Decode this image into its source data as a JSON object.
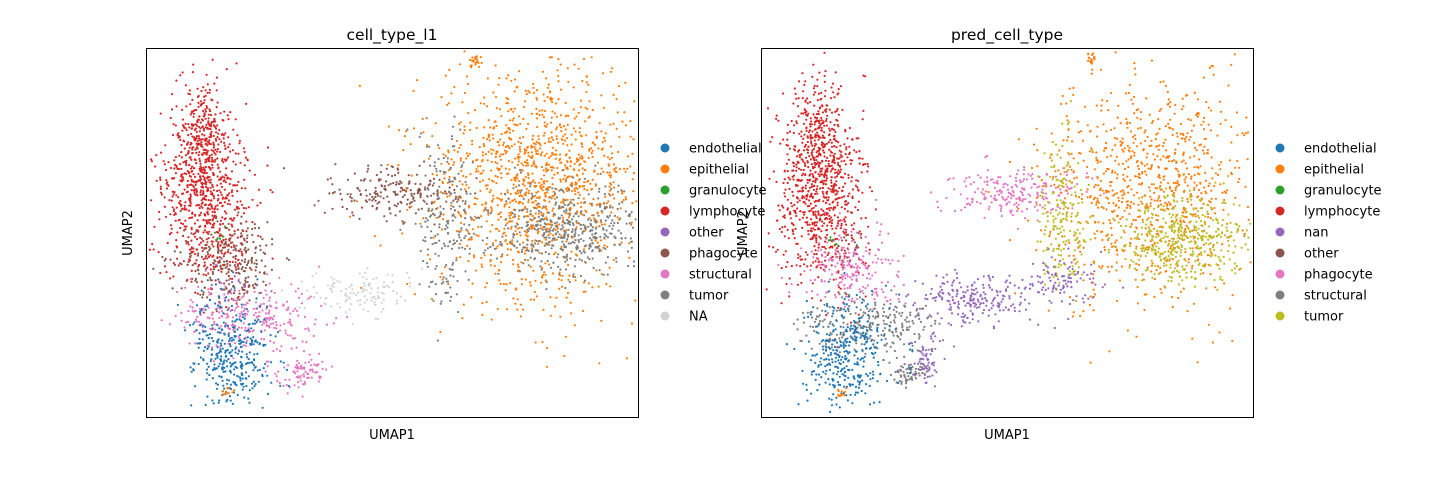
{
  "chart_data": [
    {
      "type": "scatter",
      "title": "cell_type_l1",
      "xlabel": "UMAP1",
      "ylabel": "UMAP2",
      "xticks": [],
      "yticks": [],
      "legend_position": "right",
      "series": [
        {
          "name": "endothelial",
          "color": "#1f77b4"
        },
        {
          "name": "epithelial",
          "color": "#ff7f0e"
        },
        {
          "name": "granulocyte",
          "color": "#2ca02c"
        },
        {
          "name": "lymphocyte",
          "color": "#d62728"
        },
        {
          "name": "other",
          "color": "#9467bd"
        },
        {
          "name": "phagocyte",
          "color": "#8c564b"
        },
        {
          "name": "structural",
          "color": "#e377c2"
        },
        {
          "name": "tumor",
          "color": "#7f7f7f"
        },
        {
          "name": "NA",
          "color": "#d3d3d3"
        }
      ]
    },
    {
      "type": "scatter",
      "title": "pred_cell_type",
      "xlabel": "UMAP1",
      "ylabel": "UMAP2",
      "xticks": [],
      "yticks": [],
      "legend_position": "right",
      "series": [
        {
          "name": "endothelial",
          "color": "#1f77b4"
        },
        {
          "name": "epithelial",
          "color": "#ff7f0e"
        },
        {
          "name": "granulocyte",
          "color": "#2ca02c"
        },
        {
          "name": "lymphocyte",
          "color": "#d62728"
        },
        {
          "name": "nan",
          "color": "#9467bd"
        },
        {
          "name": "other",
          "color": "#8c564b"
        },
        {
          "name": "phagocyte",
          "color": "#e377c2"
        },
        {
          "name": "structural",
          "color": "#7f7f7f"
        },
        {
          "name": "tumor",
          "color": "#bcbd22"
        }
      ]
    }
  ]
}
